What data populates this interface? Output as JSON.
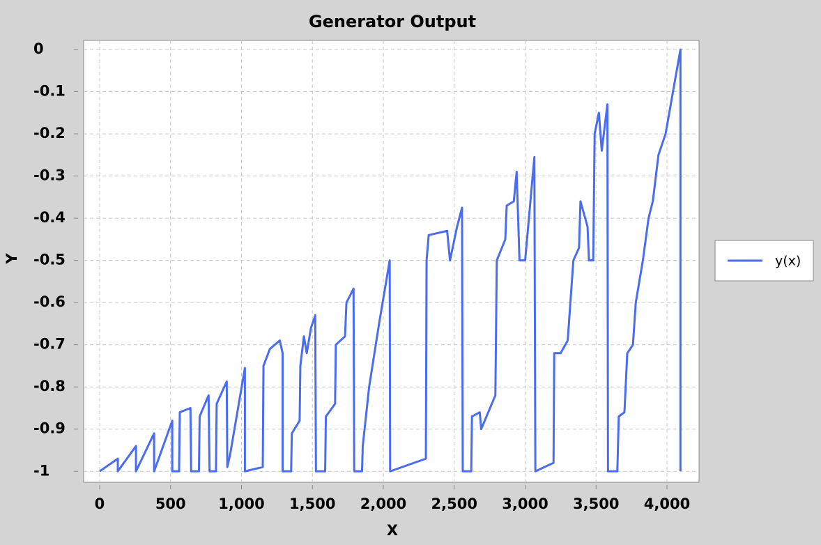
{
  "chart_data": {
    "type": "line",
    "title": "Generator Output",
    "x_label": "X",
    "y_label": "Y",
    "x": [
      0,
      128,
      128,
      256,
      256,
      384,
      384,
      512,
      512,
      560,
      565,
      640,
      645,
      700,
      705,
      768,
      775,
      820,
      825,
      896,
      900,
      920,
      1024,
      1024,
      1150,
      1155,
      1200,
      1270,
      1290,
      1290,
      1350,
      1355,
      1410,
      1415,
      1440,
      1460,
      1490,
      1520,
      1525,
      1590,
      1595,
      1660,
      1665,
      1730,
      1740,
      1790,
      1795,
      1850,
      1855,
      1900,
      1970,
      2045,
      2048,
      2300,
      2305,
      2320,
      2450,
      2470,
      2520,
      2555,
      2560,
      2620,
      2625,
      2680,
      2690,
      2790,
      2800,
      2860,
      2870,
      2920,
      2940,
      2960,
      3000,
      3065,
      3072,
      3200,
      3205,
      3250,
      3300,
      3340,
      3380,
      3390,
      3440,
      3450,
      3480,
      3490,
      3520,
      3540,
      3580,
      3584,
      3650,
      3660,
      3700,
      3720,
      3760,
      3780,
      3830,
      3870,
      3900,
      3940,
      3990,
      4095,
      4095
    ],
    "series": [
      {
        "name": "y(x)",
        "color": "#4a6cf0",
        "values": [
          -1,
          -0.97,
          -1,
          -0.94,
          -1,
          -0.91,
          -1,
          -0.88,
          -1,
          -1,
          -0.86,
          -0.85,
          -1,
          -1,
          -0.87,
          -0.82,
          -1,
          -1,
          -0.84,
          -0.787,
          -0.99,
          -0.96,
          -0.755,
          -1,
          -0.99,
          -0.75,
          -0.71,
          -0.69,
          -0.72,
          -1,
          -1,
          -0.91,
          -0.88,
          -0.75,
          -0.68,
          -0.72,
          -0.66,
          -0.63,
          -1,
          -1,
          -0.87,
          -0.84,
          -0.7,
          -0.68,
          -0.6,
          -0.567,
          -1,
          -1,
          -0.94,
          -0.8,
          -0.65,
          -0.5,
          -1,
          -0.97,
          -0.5,
          -0.44,
          -0.43,
          -0.5,
          -0.42,
          -0.375,
          -1,
          -1,
          -0.87,
          -0.86,
          -0.9,
          -0.82,
          -0.5,
          -0.45,
          -0.37,
          -0.36,
          -0.29,
          -0.5,
          -0.5,
          -0.255,
          -1,
          -0.98,
          -0.72,
          -0.72,
          -0.69,
          -0.5,
          -0.47,
          -0.36,
          -0.42,
          -0.5,
          -0.5,
          -0.2,
          -0.15,
          -0.24,
          -0.13,
          -1,
          -1,
          -0.87,
          -0.86,
          -0.72,
          -0.7,
          -0.6,
          -0.5,
          -0.4,
          -0.36,
          -0.25,
          -0.2,
          0,
          -1
        ]
      }
    ],
    "xlim": [
      -113,
      4226
    ],
    "ylim": [
      -1.026,
      0.0215
    ],
    "xticks": [
      0,
      500,
      {
        "value": 1000,
        "label": "1,000"
      },
      {
        "value": 1500,
        "label": "1,500"
      },
      {
        "value": 2000,
        "label": "2,000"
      },
      {
        "value": 2500,
        "label": "2,500"
      },
      {
        "value": 3000,
        "label": "3,000"
      },
      {
        "value": 3500,
        "label": "3,500"
      },
      {
        "value": 4000,
        "label": "4,000"
      }
    ],
    "yticks": [
      0,
      -0.1,
      -0.2,
      -0.3,
      -0.4,
      -0.5,
      -0.6,
      -0.7,
      -0.8,
      -0.9,
      -1
    ],
    "grid": true
  }
}
